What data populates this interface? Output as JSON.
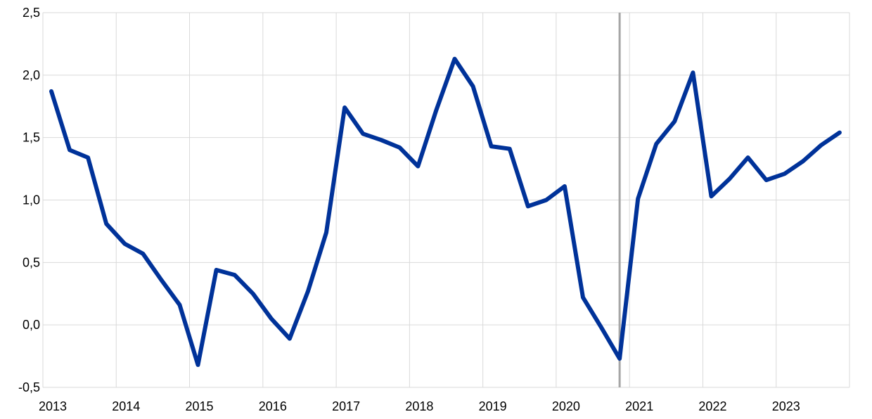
{
  "chart_data": {
    "type": "line",
    "title": "",
    "xlabel": "",
    "ylabel": "",
    "ylim": [
      -0.5,
      2.5
    ],
    "yticks": [
      "-0,5",
      "0,0",
      "0,5",
      "1,0",
      "1,5",
      "2,0",
      "2,5"
    ],
    "ytick_values": [
      -0.5,
      0,
      0.5,
      1.0,
      1.5,
      2.0,
      2.5
    ],
    "xticks": [
      "2013",
      "2014",
      "2015",
      "2016",
      "2017",
      "2018",
      "2019",
      "2020",
      "2021",
      "2022",
      "2023"
    ],
    "grid": true,
    "frequency": "quarterly",
    "x": [
      "2013Q1",
      "2013Q2",
      "2013Q3",
      "2013Q4",
      "2014Q1",
      "2014Q2",
      "2014Q3",
      "2014Q4",
      "2015Q1",
      "2015Q2",
      "2015Q3",
      "2015Q4",
      "2016Q1",
      "2016Q2",
      "2016Q3",
      "2016Q4",
      "2017Q1",
      "2017Q2",
      "2017Q3",
      "2017Q4",
      "2018Q1",
      "2018Q2",
      "2018Q3",
      "2018Q4",
      "2019Q1",
      "2019Q2",
      "2019Q3",
      "2019Q4",
      "2020Q1",
      "2020Q2",
      "2020Q3",
      "2020Q4",
      "2021Q1",
      "2021Q2",
      "2021Q3",
      "2021Q4",
      "2022Q1",
      "2022Q2",
      "2022Q3",
      "2022Q4",
      "2023Q1",
      "2023Q2",
      "2023Q3",
      "2023Q4"
    ],
    "series": [
      {
        "color": "#003299",
        "values": [
          1.87,
          1.4,
          1.34,
          0.81,
          0.65,
          0.57,
          0.36,
          0.16,
          -0.32,
          0.44,
          0.4,
          0.25,
          0.05,
          -0.11,
          0.27,
          0.74,
          1.74,
          1.53,
          1.48,
          1.42,
          1.27,
          1.72,
          2.13,
          1.91,
          1.43,
          1.41,
          0.95,
          1.0,
          1.11,
          0.22,
          -0.02,
          -0.27,
          1.01,
          1.45,
          1.63,
          2.02,
          1.03,
          1.17,
          1.34,
          1.16,
          1.21,
          1.31,
          1.44,
          1.54
        ]
      }
    ],
    "vertical_marker": {
      "x": "2020Q4",
      "color": "#a6a6a6"
    }
  }
}
